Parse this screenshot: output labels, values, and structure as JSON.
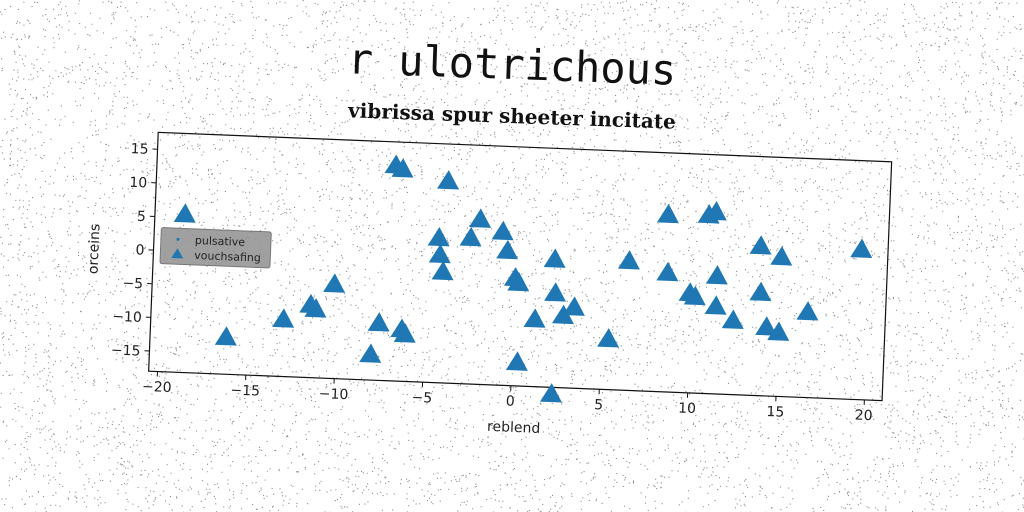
{
  "title": "r ulotrichous",
  "chart_data": {
    "type": "scatter",
    "title": "vibrissa spur sheeter incitate",
    "xlabel": "reblend",
    "ylabel": "orceins",
    "xlim": [
      -20.5,
      21
    ],
    "ylim": [
      -18,
      17.5
    ],
    "x_ticks": [
      -20,
      -15,
      -10,
      -5,
      0,
      5,
      10,
      15,
      20
    ],
    "x_tick_labels": [
      "−20",
      "−15",
      "−10",
      "−5",
      "0",
      "5",
      "10",
      "15",
      "20"
    ],
    "y_ticks": [
      -15,
      -10,
      -5,
      0,
      5,
      10,
      15
    ],
    "y_tick_labels": [
      "−15",
      "−10",
      "−5",
      "0",
      "5",
      "10",
      "15"
    ],
    "grid": false,
    "legend_position": "center-left",
    "series": [
      {
        "name": "pulsative",
        "marker": "point",
        "color": "#1f77b4",
        "x": [],
        "y": []
      },
      {
        "name": "vouchsafing",
        "marker": "triangle",
        "color": "#1f77b4",
        "x": [
          -18.8,
          -16.2,
          -13,
          -11.5,
          -11.2,
          -10.2,
          -8,
          -7.6,
          -6.3,
          -6.1,
          -7,
          -6.6,
          -4,
          -4.4,
          -4.3,
          -4.1,
          -2.6,
          -2.1,
          -0.8,
          -0.5,
          0,
          0.2,
          0.3,
          1.2,
          2.3,
          2.2,
          2.3,
          2.8,
          3.4,
          5.4,
          6.4,
          8.5,
          8.6,
          10.2,
          9.9,
          10.8,
          11.2,
          11.4,
          11.4,
          12.4,
          13.8,
          13.9,
          14.3,
          15.0,
          15.0,
          16.6,
          19.5
        ],
        "y": [
          5.5,
          -12.5,
          -9.5,
          -7.2,
          -7.8,
          -4,
          -14.2,
          -9.5,
          -10.3,
          -11,
          14,
          13.5,
          12,
          3.5,
          1,
          -1.5,
          3.7,
          6.5,
          4.8,
          2,
          -2,
          -2.7,
          -14.5,
          -8,
          -4,
          1,
          -19,
          -7.3,
          -6,
          -10.5,
          1.2,
          8.3,
          -0.3,
          -3.7,
          -3.2,
          8.5,
          9.0,
          -0.5,
          -5,
          -7,
          4.2,
          -2.7,
          -7.8,
          -8.5,
          2.7,
          -5.3,
          4.3
        ]
      }
    ]
  }
}
